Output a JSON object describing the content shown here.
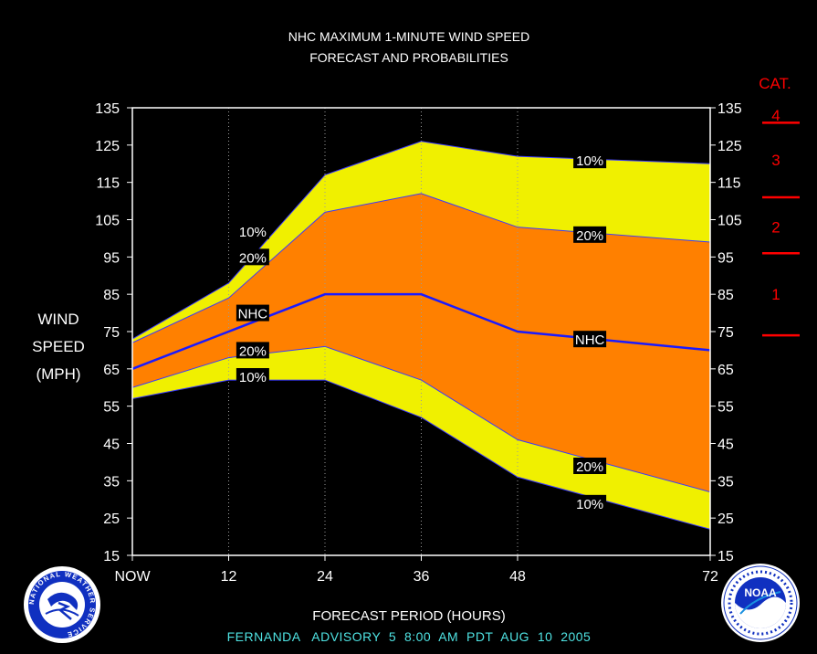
{
  "chart_data": {
    "type": "area",
    "title": "NHC MAXIMUM 1-MINUTE WIND SPEED",
    "subtitle": "FORECAST AND PROBABILITIES",
    "ylabel": [
      "WIND",
      "SPEED",
      "(MPH)"
    ],
    "xlabel": "FORECAST PERIOD (HOURS)",
    "advisory": "FERNANDA   ADVISORY  5  8:00  AM  PDT  AUG  10  2005",
    "ylim": [
      15,
      135
    ],
    "yticks": [
      15,
      25,
      35,
      45,
      55,
      65,
      75,
      85,
      95,
      105,
      115,
      125,
      135
    ],
    "xlim": [
      0,
      72
    ],
    "xticks": [
      {
        "x": 0,
        "label": "NOW"
      },
      {
        "x": 12,
        "label": "12"
      },
      {
        "x": 24,
        "label": "24"
      },
      {
        "x": 36,
        "label": "36"
      },
      {
        "x": 48,
        "label": "48"
      },
      {
        "x": 72,
        "label": "72"
      }
    ],
    "x": [
      0,
      12,
      24,
      36,
      48,
      72
    ],
    "series": [
      {
        "name": "10%",
        "role": "upper10",
        "color": "#f0f000",
        "values": [
          73,
          88,
          117,
          126,
          122,
          120
        ]
      },
      {
        "name": "20%",
        "role": "upper20",
        "color": "#ff8000",
        "values": [
          72,
          84,
          107,
          112,
          103,
          99
        ]
      },
      {
        "name": "NHC",
        "role": "nhc",
        "color": "#1a1aff",
        "values": [
          65,
          75,
          85,
          85,
          75,
          70
        ]
      },
      {
        "name": "20%",
        "role": "lower20",
        "color": "#ff8000",
        "values": [
          60,
          68,
          71,
          62,
          46,
          32
        ]
      },
      {
        "name": "10%",
        "role": "lower10",
        "color": "#f0f000",
        "values": [
          57,
          62,
          62,
          52,
          36,
          22
        ]
      }
    ],
    "labels": [
      {
        "text": "10%",
        "x": 15,
        "y": 102
      },
      {
        "text": "20%",
        "x": 15,
        "y": 95
      },
      {
        "text": "NHC",
        "x": 15,
        "y": 80
      },
      {
        "text": "20%",
        "x": 15,
        "y": 70
      },
      {
        "text": "10%",
        "x": 15,
        "y": 63
      },
      {
        "text": "10%",
        "x": 57,
        "y": 121
      },
      {
        "text": "20%",
        "x": 57,
        "y": 101
      },
      {
        "text": "NHC",
        "x": 57,
        "y": 73
      },
      {
        "text": "20%",
        "x": 57,
        "y": 39
      },
      {
        "text": "10%",
        "x": 57,
        "y": 29
      }
    ],
    "categories": {
      "heading": "CAT.",
      "thresholds": [
        74,
        96,
        111,
        131
      ],
      "labels": [
        {
          "text": "1",
          "y": 85
        },
        {
          "text": "2",
          "y": 103
        },
        {
          "text": "3",
          "y": 121
        },
        {
          "text": "4",
          "y": 133
        }
      ],
      "color": "#ff0000"
    },
    "grid": "vertical dotted at 12, 24, 36, 48 h"
  },
  "logos": {
    "left": "NATIONAL WEATHER SERVICE",
    "right": "NOAA"
  }
}
